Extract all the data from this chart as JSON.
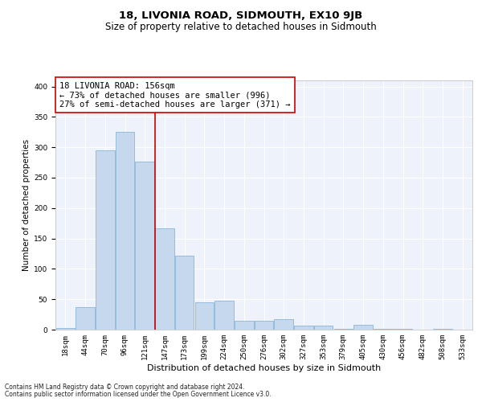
{
  "title": "18, LIVONIA ROAD, SIDMOUTH, EX10 9JB",
  "subtitle": "Size of property relative to detached houses in Sidmouth",
  "xlabel": "Distribution of detached houses by size in Sidmouth",
  "ylabel": "Number of detached properties",
  "footnote1": "Contains HM Land Registry data © Crown copyright and database right 2024.",
  "footnote2": "Contains public sector information licensed under the Open Government Licence v3.0.",
  "categories": [
    "18sqm",
    "44sqm",
    "70sqm",
    "96sqm",
    "121sqm",
    "147sqm",
    "173sqm",
    "199sqm",
    "224sqm",
    "250sqm",
    "276sqm",
    "302sqm",
    "327sqm",
    "353sqm",
    "379sqm",
    "405sqm",
    "430sqm",
    "456sqm",
    "482sqm",
    "508sqm",
    "533sqm"
  ],
  "values": [
    3,
    37,
    295,
    325,
    277,
    167,
    122,
    45,
    47,
    15,
    15,
    17,
    6,
    6,
    1,
    8,
    1,
    1,
    0,
    1,
    0
  ],
  "bar_color": "#c5d8ee",
  "bar_edge_color": "#7aadd4",
  "background_color": "#eef2fb",
  "grid_color": "#ffffff",
  "annotation_text_line1": "18 LIVONIA ROAD: 156sqm",
  "annotation_text_line2": "← 73% of detached houses are smaller (996)",
  "annotation_text_line3": "27% of semi-detached houses are larger (371) →",
  "annotation_box_facecolor": "#ffffff",
  "annotation_box_edgecolor": "#cc0000",
  "vline_color": "#cc0000",
  "vline_x_index": 4.5,
  "ylim_max": 410,
  "title_fontsize": 9.5,
  "subtitle_fontsize": 8.5,
  "xlabel_fontsize": 8,
  "ylabel_fontsize": 7.5,
  "tick_fontsize": 6.5,
  "annotation_fontsize": 7.5,
  "footnote_fontsize": 5.5
}
